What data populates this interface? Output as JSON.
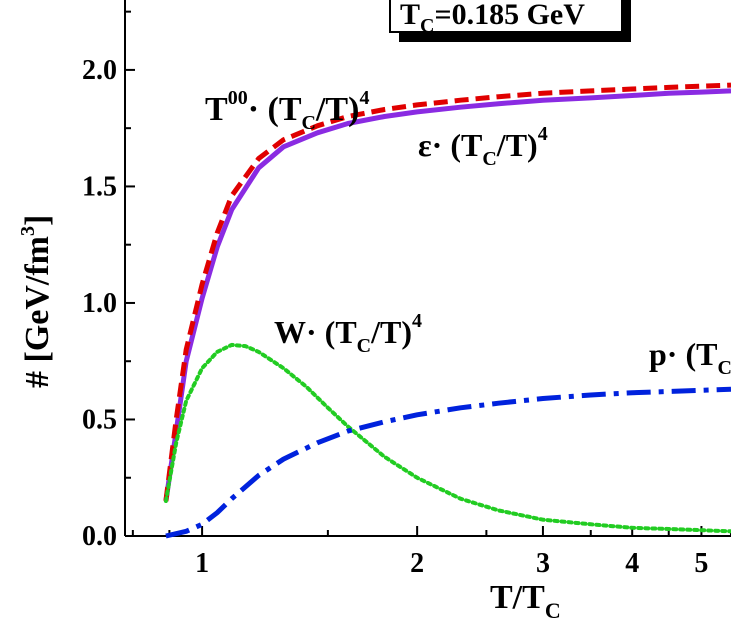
{
  "chart_data": {
    "type": "line",
    "xscale": "log",
    "xlim": [
      0.78,
      5.5
    ],
    "ylim": [
      0.0,
      2.3
    ],
    "xlabel": {
      "main": "T/T",
      "sub": "C"
    },
    "ylabel": {
      "main": "# [GeV/fm",
      "sup": "3",
      "end": "]"
    },
    "x_ticks": [
      {
        "value": 1,
        "label": "1"
      },
      {
        "value": 2,
        "label": "2"
      },
      {
        "value": 3,
        "label": "3"
      },
      {
        "value": 4,
        "label": "4"
      },
      {
        "value": 5,
        "label": "5"
      }
    ],
    "y_ticks": [
      {
        "value": 0.0,
        "label": "0.0"
      },
      {
        "value": 0.5,
        "label": "0.5"
      },
      {
        "value": 1.0,
        "label": "1.0"
      },
      {
        "value": 1.5,
        "label": "1.5"
      },
      {
        "value": 2.0,
        "label": "2.0"
      }
    ],
    "legend_box": {
      "main": "T",
      "sub": "C",
      "rest": "=0.185 GeV"
    },
    "annotations": [
      {
        "id": "t00",
        "parts": [
          "T",
          "00",
          "· (T",
          "C",
          "/T)",
          "4"
        ]
      },
      {
        "id": "eps",
        "parts": [
          "ε",
          "· (T",
          "C",
          "/T)",
          "4"
        ]
      },
      {
        "id": "w",
        "parts": [
          "W",
          "· (T",
          "C",
          "/T)",
          "4"
        ]
      },
      {
        "id": "p",
        "parts": [
          "p",
          "· (T",
          "C"
        ]
      }
    ],
    "series": [
      {
        "id": "T00",
        "color": "#e00000",
        "style": "dashed",
        "x": [
          0.89,
          0.92,
          0.95,
          1.0,
          1.05,
          1.1,
          1.2,
          1.3,
          1.45,
          1.6,
          1.8,
          2.0,
          2.3,
          2.6,
          3.0,
          3.5,
          4.0,
          4.5,
          5.0,
          5.5
        ],
        "y": [
          0.15,
          0.5,
          0.8,
          1.08,
          1.3,
          1.46,
          1.62,
          1.7,
          1.76,
          1.8,
          1.83,
          1.85,
          1.87,
          1.885,
          1.9,
          1.91,
          1.918,
          1.925,
          1.93,
          1.935
        ]
      },
      {
        "id": "epsilon",
        "color": "#8a2be2",
        "style": "solid",
        "x": [
          0.89,
          0.92,
          0.95,
          1.0,
          1.05,
          1.1,
          1.2,
          1.3,
          1.45,
          1.6,
          1.8,
          2.0,
          2.3,
          2.6,
          3.0,
          3.5,
          4.0,
          4.5,
          5.0,
          5.5
        ],
        "y": [
          0.15,
          0.45,
          0.75,
          1.02,
          1.24,
          1.4,
          1.58,
          1.67,
          1.73,
          1.77,
          1.8,
          1.82,
          1.84,
          1.855,
          1.87,
          1.88,
          1.89,
          1.9,
          1.905,
          1.91
        ]
      },
      {
        "id": "W",
        "color": "#22cc22",
        "style": "dotted",
        "x": [
          0.89,
          0.92,
          0.95,
          1.0,
          1.05,
          1.1,
          1.15,
          1.2,
          1.3,
          1.4,
          1.5,
          1.6,
          1.8,
          2.0,
          2.3,
          2.6,
          3.0,
          3.5,
          4.0,
          4.5,
          5.0,
          5.5
        ],
        "y": [
          0.15,
          0.4,
          0.58,
          0.72,
          0.79,
          0.82,
          0.815,
          0.79,
          0.72,
          0.64,
          0.55,
          0.47,
          0.34,
          0.25,
          0.16,
          0.11,
          0.07,
          0.05,
          0.035,
          0.03,
          0.025,
          0.02
        ]
      },
      {
        "id": "p",
        "color": "#0022dd",
        "style": "dashdot",
        "x": [
          0.89,
          0.95,
          1.0,
          1.05,
          1.1,
          1.2,
          1.3,
          1.45,
          1.6,
          1.8,
          2.0,
          2.3,
          2.6,
          3.0,
          3.5,
          4.0,
          4.5,
          5.0,
          5.5
        ],
        "y": [
          0.0,
          0.02,
          0.05,
          0.1,
          0.16,
          0.26,
          0.33,
          0.4,
          0.45,
          0.49,
          0.52,
          0.55,
          0.57,
          0.59,
          0.605,
          0.615,
          0.62,
          0.625,
          0.63
        ]
      }
    ]
  }
}
